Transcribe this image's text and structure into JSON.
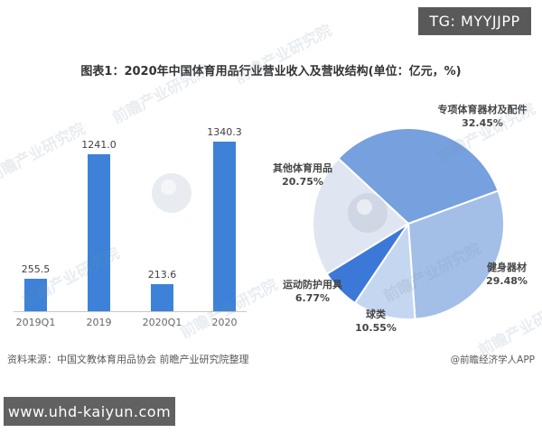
{
  "overlays": {
    "tg_badge": "TG: MYYJJPP",
    "site_badge": "www.uhd-kaiyun.com",
    "watermark_text": "前瞻产业研究院"
  },
  "header": {
    "title": "图表1：2020年中国体育用品行业营业收入及营收结构(单位：亿元，%)"
  },
  "footer": {
    "source_note": "资料来源：中国文教体育用品协会 前瞻产业研究院整理",
    "credit": "@前瞻经济学人APP"
  },
  "colors": {
    "bar": "#3d82d8",
    "badge_bg": "#595959",
    "axis": "#c9c9c9",
    "pie_specialized": "#76a0de",
    "pie_fitness": "#a3bfe8",
    "pie_balls": "#c4d6f0",
    "pie_protective": "#3c78d8",
    "pie_other": "#dfe6f1"
  },
  "chart_data": [
    {
      "type": "bar",
      "categories": [
        "2019Q1",
        "2019",
        "2020Q1",
        "2020"
      ],
      "values": [
        255.5,
        1241.0,
        213.6,
        1340.3
      ],
      "value_labels": [
        "255.5",
        "1241.0",
        "213.6",
        "1340.3"
      ],
      "title": "",
      "xlabel": "",
      "ylabel": "",
      "ylim": [
        0,
        1400
      ],
      "grid": false,
      "bar_color": "#3d82d8"
    },
    {
      "type": "pie",
      "title": "",
      "start_angle_deg": 137,
      "direction": "clockwise",
      "slices": [
        {
          "label": "专项体育器材及配件",
          "value": 32.45,
          "color": "#76a0de"
        },
        {
          "label": "健身器材",
          "value": 29.48,
          "color": "#a3bfe8"
        },
        {
          "label": "球类",
          "value": 10.55,
          "color": "#c4d6f0"
        },
        {
          "label": "运动防护用具",
          "value": 6.77,
          "color": "#3c78d8"
        },
        {
          "label": "其他体育用品",
          "value": 20.75,
          "color": "#dfe6f1"
        }
      ]
    }
  ]
}
